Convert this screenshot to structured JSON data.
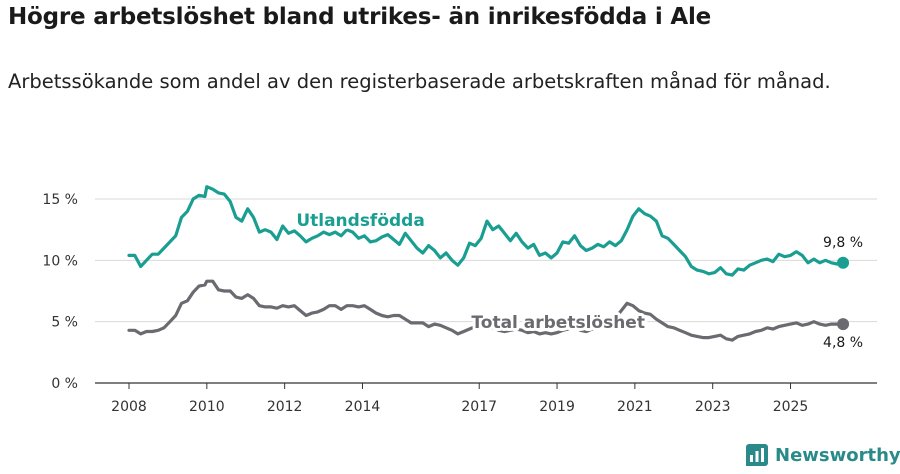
{
  "header": {
    "title": "Högre arbetslöshet bland utrikes- än inrikesfödda i Ale",
    "subtitle": "Arbetssökande som andel av den registerbaserade arbetskraften månad för månad."
  },
  "brand": {
    "name": "Newsworthy",
    "icon": "newsworthy-logo-icon"
  },
  "colors": {
    "foreign": "#1a9e92",
    "total": "#6a6a70",
    "axis": "#333333",
    "grid": "#d9d9d9"
  },
  "chart_data": {
    "type": "line",
    "title": "Högre arbetslöshet bland utrikes- än inrikesfödda i Ale",
    "xlabel": "",
    "ylabel": "",
    "ylim": [
      0,
      15
    ],
    "xlim": [
      2008,
      2026.4
    ],
    "y_ticks": [
      {
        "value": 0,
        "label": "0 %"
      },
      {
        "value": 5,
        "label": "5 %"
      },
      {
        "value": 10,
        "label": "10 %"
      },
      {
        "value": 15,
        "label": "15 %"
      }
    ],
    "x_ticks": [
      {
        "value": 2008,
        "label": "2008"
      },
      {
        "value": 2010,
        "label": "2010"
      },
      {
        "value": 2012,
        "label": "2012"
      },
      {
        "value": 2014,
        "label": "2014"
      },
      {
        "value": 2017,
        "label": "2017"
      },
      {
        "value": 2019,
        "label": "2019"
      },
      {
        "value": 2021,
        "label": "2021"
      },
      {
        "value": 2023,
        "label": "2023"
      },
      {
        "value": 2025,
        "label": "2025"
      }
    ],
    "grid": true,
    "series": [
      {
        "name": "Utlandsfödda",
        "label_at": [
          2012.3,
          12.8
        ],
        "end_label": "9,8 %",
        "points": [
          [
            2008.0,
            10.4
          ],
          [
            2008.15,
            10.4
          ],
          [
            2008.3,
            9.5
          ],
          [
            2008.45,
            10.0
          ],
          [
            2008.6,
            10.5
          ],
          [
            2008.75,
            10.5
          ],
          [
            2008.9,
            11.0
          ],
          [
            2009.05,
            11.5
          ],
          [
            2009.2,
            12.0
          ],
          [
            2009.35,
            13.5
          ],
          [
            2009.5,
            14.0
          ],
          [
            2009.65,
            15.0
          ],
          [
            2009.8,
            15.3
          ],
          [
            2009.95,
            15.2
          ],
          [
            2010.0,
            16.0
          ],
          [
            2010.15,
            15.8
          ],
          [
            2010.3,
            15.5
          ],
          [
            2010.45,
            15.4
          ],
          [
            2010.6,
            14.8
          ],
          [
            2010.75,
            13.5
          ],
          [
            2010.9,
            13.2
          ],
          [
            2011.05,
            14.2
          ],
          [
            2011.2,
            13.5
          ],
          [
            2011.35,
            12.3
          ],
          [
            2011.5,
            12.5
          ],
          [
            2011.65,
            12.3
          ],
          [
            2011.8,
            11.7
          ],
          [
            2011.95,
            12.8
          ],
          [
            2012.1,
            12.2
          ],
          [
            2012.25,
            12.4
          ],
          [
            2012.4,
            12.0
          ],
          [
            2012.55,
            11.5
          ],
          [
            2012.7,
            11.8
          ],
          [
            2012.85,
            12.0
          ],
          [
            2013.0,
            12.3
          ],
          [
            2013.15,
            12.1
          ],
          [
            2013.3,
            12.3
          ],
          [
            2013.45,
            12.0
          ],
          [
            2013.6,
            12.5
          ],
          [
            2013.75,
            12.3
          ],
          [
            2013.9,
            11.8
          ],
          [
            2014.05,
            12.0
          ],
          [
            2014.2,
            11.5
          ],
          [
            2014.35,
            11.6
          ],
          [
            2014.5,
            11.9
          ],
          [
            2014.65,
            12.1
          ],
          [
            2014.8,
            11.7
          ],
          [
            2014.95,
            11.3
          ],
          [
            2015.1,
            12.2
          ],
          [
            2015.25,
            11.6
          ],
          [
            2015.4,
            11.0
          ],
          [
            2015.55,
            10.6
          ],
          [
            2015.7,
            11.2
          ],
          [
            2015.85,
            10.8
          ],
          [
            2016.0,
            10.2
          ],
          [
            2016.15,
            10.6
          ],
          [
            2016.3,
            10.0
          ],
          [
            2016.45,
            9.6
          ],
          [
            2016.6,
            10.2
          ],
          [
            2016.75,
            11.4
          ],
          [
            2016.9,
            11.2
          ],
          [
            2017.05,
            11.8
          ],
          [
            2017.2,
            13.2
          ],
          [
            2017.35,
            12.5
          ],
          [
            2017.5,
            12.8
          ],
          [
            2017.65,
            12.2
          ],
          [
            2017.8,
            11.6
          ],
          [
            2017.95,
            12.2
          ],
          [
            2018.1,
            11.5
          ],
          [
            2018.25,
            11.0
          ],
          [
            2018.4,
            11.3
          ],
          [
            2018.55,
            10.4
          ],
          [
            2018.7,
            10.6
          ],
          [
            2018.85,
            10.2
          ],
          [
            2019.0,
            10.6
          ],
          [
            2019.15,
            11.5
          ],
          [
            2019.3,
            11.4
          ],
          [
            2019.45,
            12.0
          ],
          [
            2019.6,
            11.2
          ],
          [
            2019.75,
            10.8
          ],
          [
            2019.9,
            11.0
          ],
          [
            2020.05,
            11.3
          ],
          [
            2020.2,
            11.1
          ],
          [
            2020.35,
            11.5
          ],
          [
            2020.5,
            11.2
          ],
          [
            2020.65,
            11.6
          ],
          [
            2020.8,
            12.5
          ],
          [
            2020.95,
            13.6
          ],
          [
            2021.1,
            14.2
          ],
          [
            2021.25,
            13.8
          ],
          [
            2021.4,
            13.6
          ],
          [
            2021.55,
            13.2
          ],
          [
            2021.7,
            12.0
          ],
          [
            2021.85,
            11.8
          ],
          [
            2022.0,
            11.3
          ],
          [
            2022.15,
            10.8
          ],
          [
            2022.3,
            10.3
          ],
          [
            2022.45,
            9.5
          ],
          [
            2022.6,
            9.2
          ],
          [
            2022.75,
            9.1
          ],
          [
            2022.9,
            8.9
          ],
          [
            2023.05,
            9.0
          ],
          [
            2023.2,
            9.4
          ],
          [
            2023.35,
            8.9
          ],
          [
            2023.5,
            8.8
          ],
          [
            2023.65,
            9.3
          ],
          [
            2023.8,
            9.2
          ],
          [
            2023.95,
            9.6
          ],
          [
            2024.1,
            9.8
          ],
          [
            2024.25,
            10.0
          ],
          [
            2024.4,
            10.1
          ],
          [
            2024.55,
            9.9
          ],
          [
            2024.7,
            10.5
          ],
          [
            2024.85,
            10.3
          ],
          [
            2025.0,
            10.4
          ],
          [
            2025.15,
            10.7
          ],
          [
            2025.3,
            10.4
          ],
          [
            2025.45,
            9.8
          ],
          [
            2025.6,
            10.1
          ],
          [
            2025.75,
            9.8
          ],
          [
            2025.9,
            10.0
          ],
          [
            2026.05,
            9.8
          ],
          [
            2026.2,
            9.7
          ],
          [
            2026.35,
            9.8
          ]
        ]
      },
      {
        "name": "Total arbetslöshet",
        "label_at": [
          2016.8,
          4.5
        ],
        "end_label": "4,8 %",
        "points": [
          [
            2008.0,
            4.3
          ],
          [
            2008.15,
            4.3
          ],
          [
            2008.3,
            4.0
          ],
          [
            2008.45,
            4.2
          ],
          [
            2008.6,
            4.2
          ],
          [
            2008.75,
            4.3
          ],
          [
            2008.9,
            4.5
          ],
          [
            2009.05,
            5.0
          ],
          [
            2009.2,
            5.5
          ],
          [
            2009.35,
            6.5
          ],
          [
            2009.5,
            6.7
          ],
          [
            2009.65,
            7.4
          ],
          [
            2009.8,
            7.9
          ],
          [
            2009.95,
            8.0
          ],
          [
            2010.0,
            8.3
          ],
          [
            2010.15,
            8.3
          ],
          [
            2010.3,
            7.6
          ],
          [
            2010.45,
            7.5
          ],
          [
            2010.6,
            7.5
          ],
          [
            2010.75,
            7.0
          ],
          [
            2010.9,
            6.9
          ],
          [
            2011.05,
            7.2
          ],
          [
            2011.2,
            6.9
          ],
          [
            2011.35,
            6.3
          ],
          [
            2011.5,
            6.2
          ],
          [
            2011.65,
            6.2
          ],
          [
            2011.8,
            6.1
          ],
          [
            2011.95,
            6.3
          ],
          [
            2012.1,
            6.2
          ],
          [
            2012.25,
            6.3
          ],
          [
            2012.4,
            5.9
          ],
          [
            2012.55,
            5.5
          ],
          [
            2012.7,
            5.7
          ],
          [
            2012.85,
            5.8
          ],
          [
            2013.0,
            6.0
          ],
          [
            2013.15,
            6.3
          ],
          [
            2013.3,
            6.3
          ],
          [
            2013.45,
            6.0
          ],
          [
            2013.6,
            6.3
          ],
          [
            2013.75,
            6.3
          ],
          [
            2013.9,
            6.2
          ],
          [
            2014.05,
            6.3
          ],
          [
            2014.2,
            6.0
          ],
          [
            2014.35,
            5.7
          ],
          [
            2014.5,
            5.5
          ],
          [
            2014.65,
            5.4
          ],
          [
            2014.8,
            5.5
          ],
          [
            2014.95,
            5.5
          ],
          [
            2015.1,
            5.2
          ],
          [
            2015.25,
            4.9
          ],
          [
            2015.4,
            4.9
          ],
          [
            2015.55,
            4.9
          ],
          [
            2015.7,
            4.6
          ],
          [
            2015.85,
            4.8
          ],
          [
            2016.0,
            4.7
          ],
          [
            2016.15,
            4.5
          ],
          [
            2016.3,
            4.3
          ],
          [
            2016.45,
            4.0
          ],
          [
            2016.6,
            4.2
          ],
          [
            2016.75,
            4.4
          ],
          [
            2016.9,
            4.6
          ],
          [
            2017.05,
            4.6
          ],
          [
            2017.2,
            4.7
          ],
          [
            2017.35,
            4.5
          ],
          [
            2017.5,
            4.3
          ],
          [
            2017.65,
            4.2
          ],
          [
            2017.8,
            4.3
          ],
          [
            2017.95,
            4.4
          ],
          [
            2018.1,
            4.3
          ],
          [
            2018.25,
            4.1
          ],
          [
            2018.4,
            4.2
          ],
          [
            2018.55,
            4.0
          ],
          [
            2018.7,
            4.1
          ],
          [
            2018.85,
            4.0
          ],
          [
            2019.0,
            4.1
          ],
          [
            2019.15,
            4.3
          ],
          [
            2019.3,
            4.4
          ],
          [
            2019.45,
            4.6
          ],
          [
            2019.6,
            4.3
          ],
          [
            2019.75,
            4.2
          ],
          [
            2019.9,
            4.4
          ],
          [
            2020.05,
            4.6
          ],
          [
            2020.2,
            4.7
          ],
          [
            2020.35,
            5.0
          ],
          [
            2020.5,
            5.3
          ],
          [
            2020.65,
            5.9
          ],
          [
            2020.8,
            6.5
          ],
          [
            2020.95,
            6.3
          ],
          [
            2021.1,
            5.9
          ],
          [
            2021.25,
            5.7
          ],
          [
            2021.4,
            5.6
          ],
          [
            2021.55,
            5.2
          ],
          [
            2021.7,
            4.9
          ],
          [
            2021.85,
            4.6
          ],
          [
            2022.0,
            4.5
          ],
          [
            2022.15,
            4.3
          ],
          [
            2022.3,
            4.1
          ],
          [
            2022.45,
            3.9
          ],
          [
            2022.6,
            3.8
          ],
          [
            2022.75,
            3.7
          ],
          [
            2022.9,
            3.7
          ],
          [
            2023.05,
            3.8
          ],
          [
            2023.2,
            3.9
          ],
          [
            2023.35,
            3.6
          ],
          [
            2023.5,
            3.5
          ],
          [
            2023.65,
            3.8
          ],
          [
            2023.8,
            3.9
          ],
          [
            2023.95,
            4.0
          ],
          [
            2024.1,
            4.2
          ],
          [
            2024.25,
            4.3
          ],
          [
            2024.4,
            4.5
          ],
          [
            2024.55,
            4.4
          ],
          [
            2024.7,
            4.6
          ],
          [
            2024.85,
            4.7
          ],
          [
            2025.0,
            4.8
          ],
          [
            2025.15,
            4.9
          ],
          [
            2025.3,
            4.7
          ],
          [
            2025.45,
            4.8
          ],
          [
            2025.6,
            5.0
          ],
          [
            2025.75,
            4.8
          ],
          [
            2025.9,
            4.7
          ],
          [
            2026.05,
            4.8
          ],
          [
            2026.2,
            4.8
          ],
          [
            2026.35,
            4.8
          ]
        ]
      }
    ]
  }
}
